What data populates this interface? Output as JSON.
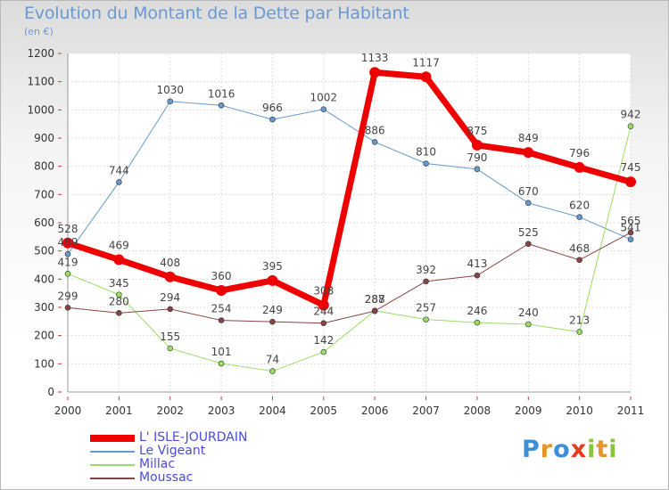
{
  "page": {
    "title": "Evolution du Montant de la Dette par Habitant",
    "unit": "(en €)",
    "logo": {
      "text": "Proxiti",
      "letters": [
        "P",
        "r",
        "o",
        "x",
        "i",
        "t",
        "i"
      ],
      "colors": [
        "#3a8fd8",
        "#e8922a",
        "#3a8fd8",
        "#e83a1e",
        "#8ac43a",
        "#e8922a",
        "#8ac43a"
      ]
    }
  },
  "chart_data": {
    "type": "line",
    "title": "Evolution du Montant de la Dette par Habitant",
    "ylabel": "(en €)",
    "xlabel": "",
    "x": [
      "2000",
      "2001",
      "2002",
      "2003",
      "2004",
      "2005",
      "2006",
      "2007",
      "2008",
      "2009",
      "2010",
      "2011"
    ],
    "ylim": [
      0,
      1200
    ],
    "yticks": [
      "0",
      "100",
      "200",
      "300",
      "400",
      "500",
      "600",
      "700",
      "800",
      "900",
      "1000",
      "1100",
      "1200"
    ],
    "grid": true,
    "legend_position": "bottom-left",
    "series": [
      {
        "name": "Le Vigeant",
        "color": "#6699cc",
        "width": 1,
        "marker": 3,
        "values": [
          489,
          744,
          1030,
          1016,
          966,
          1002,
          886,
          810,
          790,
          670,
          620,
          541
        ],
        "labels": [
          "489",
          "744",
          "1030",
          "1016",
          "966",
          "1002",
          "886",
          "810",
          "790",
          "670",
          "620",
          "541"
        ]
      },
      {
        "name": "Millac",
        "color": "#99dd66",
        "width": 1,
        "marker": 3,
        "values": [
          419,
          345,
          155,
          101,
          74,
          142,
          288,
          257,
          246,
          240,
          213,
          942
        ],
        "labels": [
          "419",
          "345",
          "155",
          "101",
          "74",
          "142",
          "288",
          "257",
          "246",
          "240",
          "213",
          "942"
        ]
      },
      {
        "name": "Moussac",
        "color": "#884444",
        "width": 1,
        "marker": 3,
        "values": [
          299,
          280,
          294,
          254,
          249,
          244,
          287,
          392,
          413,
          525,
          468,
          565
        ],
        "labels": [
          "299",
          "280",
          "294",
          "254",
          "249",
          "244",
          "287",
          "392",
          "413",
          "525",
          "468",
          "565"
        ]
      },
      {
        "name": "L' ISLE-JOURDAIN",
        "color": "#ee0000",
        "width": 7,
        "marker": 6,
        "values": [
          528,
          469,
          408,
          360,
          395,
          308,
          1133,
          1117,
          875,
          849,
          796,
          745
        ],
        "labels": [
          "528",
          "469",
          "408",
          "360",
          "395",
          "308",
          "1133",
          "1117",
          "875",
          "849",
          "796",
          "745"
        ]
      }
    ],
    "legend": [
      "L' ISLE-JOURDAIN",
      "Le Vigeant",
      "Millac",
      "Moussac"
    ]
  }
}
